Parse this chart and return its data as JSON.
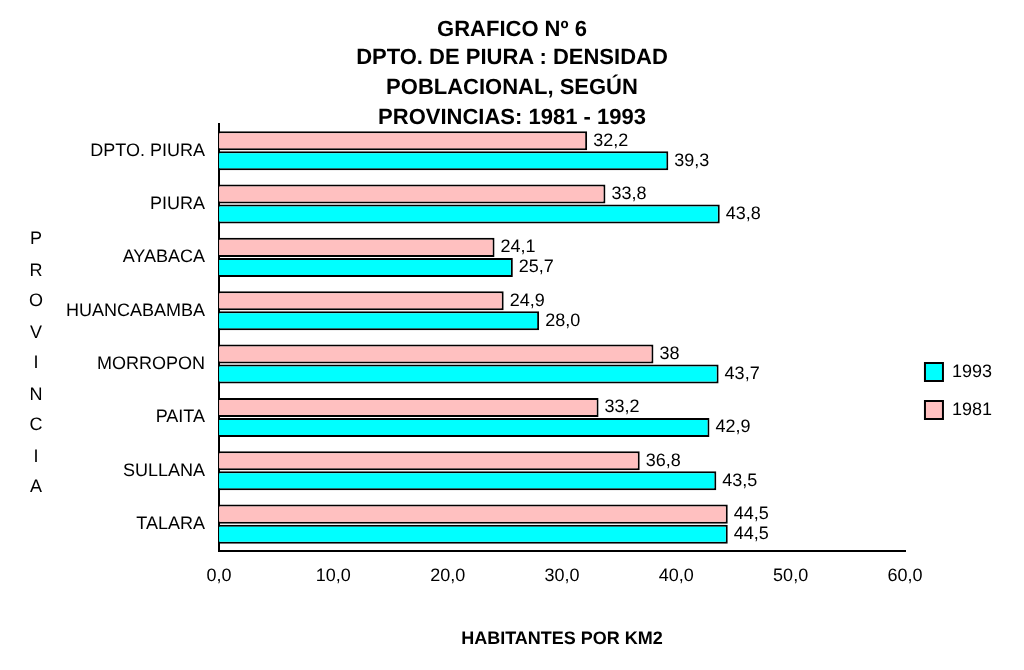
{
  "chart_data": {
    "type": "bar",
    "orientation": "horizontal",
    "title": "GRAFICO Nº 6",
    "subtitle": "DPTO. DE PIURA : DENSIDAD POBLACIONAL, SEGÚN PROVINCIAS: 1981 - 1993",
    "xlabel": "HABITANTES POR KM2",
    "ylabel": "PROVINCIA",
    "categories": [
      "DPTO. PIURA",
      "PIURA",
      "AYABACA",
      "HUANCABAMBA",
      "MORROPON",
      "PAITA",
      "SULLANA",
      "TALARA"
    ],
    "series": [
      {
        "name": "1981",
        "color": "#ffc0c0",
        "values": [
          32.2,
          33.8,
          24.1,
          24.9,
          38,
          33.2,
          36.8,
          44.5
        ],
        "value_labels": [
          "32,2",
          "33,8",
          "24,1",
          "24,9",
          "38",
          "33,2",
          "36,8",
          "44,5"
        ]
      },
      {
        "name": "1993",
        "color": "#00ffff",
        "values": [
          39.3,
          43.8,
          25.7,
          28.0,
          43.7,
          42.9,
          43.5,
          44.5
        ],
        "value_labels": [
          "39,3",
          "43,8",
          "25,7",
          "28,0",
          "43,7",
          "42,9",
          "43,5",
          "44,5"
        ]
      }
    ],
    "xlim": [
      0,
      60
    ],
    "xticks": [
      {
        "value": 0,
        "label": "0,0"
      },
      {
        "value": 10,
        "label": "10,0"
      },
      {
        "value": 20,
        "label": "20,0"
      },
      {
        "value": 30,
        "label": "30,0"
      },
      {
        "value": 40,
        "label": "40,0"
      },
      {
        "value": 50,
        "label": "50,0"
      },
      {
        "value": 60,
        "label": "60,0"
      }
    ],
    "grid": false,
    "legend": "right"
  }
}
